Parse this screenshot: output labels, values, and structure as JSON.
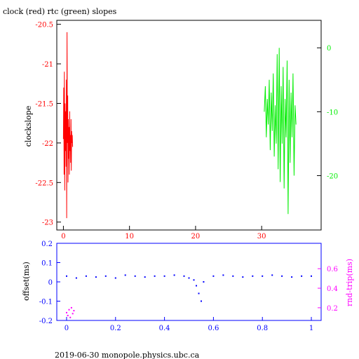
{
  "colors": {
    "red": "#ff0000",
    "green": "#00ee00",
    "blue": "#0000ff",
    "magenta": "#ff00ff",
    "black": "#000000"
  },
  "footer": "2019-06-30 monopole.physics.ubc.ca",
  "chart_data": [
    {
      "type": "line",
      "title": "clock (red) rtc (green) slopes",
      "ylabel": "clockslope",
      "xlim": [
        -1,
        39
      ],
      "x_ticks": [
        0,
        10,
        20,
        30
      ],
      "ylim": [
        -23.1,
        -20.45
      ],
      "y_ticks": [
        -20.5,
        -21,
        -21.5,
        -22,
        -22.5,
        -23
      ],
      "y_tick_labels": [
        "-20.5",
        "-21",
        "-21.5",
        "-22",
        "-22.5",
        "-23"
      ],
      "y2lim": [
        -28.5,
        4.3
      ],
      "y2_ticks": [
        0,
        -10,
        -20
      ],
      "y2_tick_labels": [
        "0",
        "-10",
        "-20"
      ],
      "series": [
        {
          "color": "red",
          "axis": "left",
          "x": [
            0.0,
            0.05,
            0.1,
            0.15,
            0.2,
            0.25,
            0.3,
            0.35,
            0.4,
            0.45,
            0.5,
            0.55,
            0.6,
            0.65,
            0.7,
            0.75,
            0.8,
            0.85,
            0.9,
            0.95,
            1.0,
            1.05,
            1.1,
            1.15,
            1.2,
            1.25,
            1.3,
            1.35,
            1.4
          ],
          "values": [
            -21.95,
            -21.3,
            -22.4,
            -21.1,
            -22.6,
            -21.5,
            -22.1,
            -21.6,
            -22.3,
            -21.2,
            -22.95,
            -20.6,
            -22.0,
            -21.4,
            -22.5,
            -21.7,
            -22.2,
            -21.8,
            -22.4,
            -21.6,
            -22.1,
            -21.9,
            -22.25,
            -21.7,
            -22.35,
            -21.85,
            -22.0,
            -21.9,
            -22.05
          ]
        },
        {
          "color": "green",
          "axis": "right",
          "x": [
            30.4,
            30.55,
            30.7,
            30.85,
            31.0,
            31.15,
            31.3,
            31.45,
            31.6,
            31.75,
            31.9,
            32.05,
            32.2,
            32.35,
            32.5,
            32.65,
            32.8,
            32.95,
            33.1,
            33.25,
            33.4,
            33.55,
            33.7,
            33.85,
            34.0,
            34.15,
            34.3,
            34.45,
            34.6,
            34.75,
            34.9,
            35.05,
            35.2
          ],
          "values": [
            -10,
            -6,
            -14,
            -8,
            -12,
            -5,
            -16,
            -7,
            -13,
            -4,
            -17,
            -9,
            -15,
            -1,
            -19,
            0,
            -21,
            -6,
            -15,
            -3,
            -22,
            -8,
            -14,
            -2,
            -26,
            -5,
            -18,
            -7,
            -14,
            -4,
            -20,
            -9,
            -12
          ]
        }
      ]
    },
    {
      "type": "scatter",
      "ylabel": "offset(ms)",
      "y2label": "rnd-trip(ms)",
      "xlim": [
        -0.04,
        1.04
      ],
      "x_ticks": [
        0,
        0.2,
        0.4,
        0.6,
        0.8,
        1
      ],
      "x_tick_labels": [
        "0",
        "0.2",
        "0.4",
        "0.6",
        "0.8",
        "1"
      ],
      "ylim": [
        -0.2,
        0.2
      ],
      "y_ticks": [
        0.2,
        0.1,
        0,
        -0.1,
        -0.2
      ],
      "y_tick_labels": [
        "0.2",
        "0.1",
        "0",
        "-0.1",
        "-0.2"
      ],
      "y2lim": [
        0.07,
        0.86
      ],
      "y2_ticks": [
        0.6,
        0.4,
        0.2
      ],
      "y2_tick_labels": [
        "0.6",
        "0.4",
        "0.2"
      ],
      "series": [
        {
          "color": "blue",
          "axis": "left",
          "x": [
            0.0,
            0.04,
            0.08,
            0.12,
            0.16,
            0.2,
            0.24,
            0.28,
            0.32,
            0.36,
            0.4,
            0.44,
            0.48,
            0.5,
            0.52,
            0.53,
            0.54,
            0.55,
            0.56,
            0.6,
            0.64,
            0.68,
            0.72,
            0.76,
            0.8,
            0.84,
            0.88,
            0.92,
            0.96,
            1.0
          ],
          "values": [
            0.03,
            0.02,
            0.03,
            0.025,
            0.03,
            0.02,
            0.035,
            0.03,
            0.025,
            0.03,
            0.03,
            0.035,
            0.03,
            0.02,
            0.01,
            -0.02,
            -0.06,
            -0.1,
            0.0,
            0.03,
            0.035,
            0.03,
            0.025,
            0.03,
            0.03,
            0.035,
            0.03,
            0.025,
            0.03,
            0.03
          ]
        },
        {
          "color": "magenta",
          "axis": "right",
          "x": [
            0.0,
            0.005,
            0.01,
            0.015,
            0.02,
            0.025,
            0.03
          ],
          "values": [
            0.15,
            0.12,
            0.18,
            0.1,
            0.2,
            0.14,
            0.17
          ]
        }
      ]
    }
  ]
}
